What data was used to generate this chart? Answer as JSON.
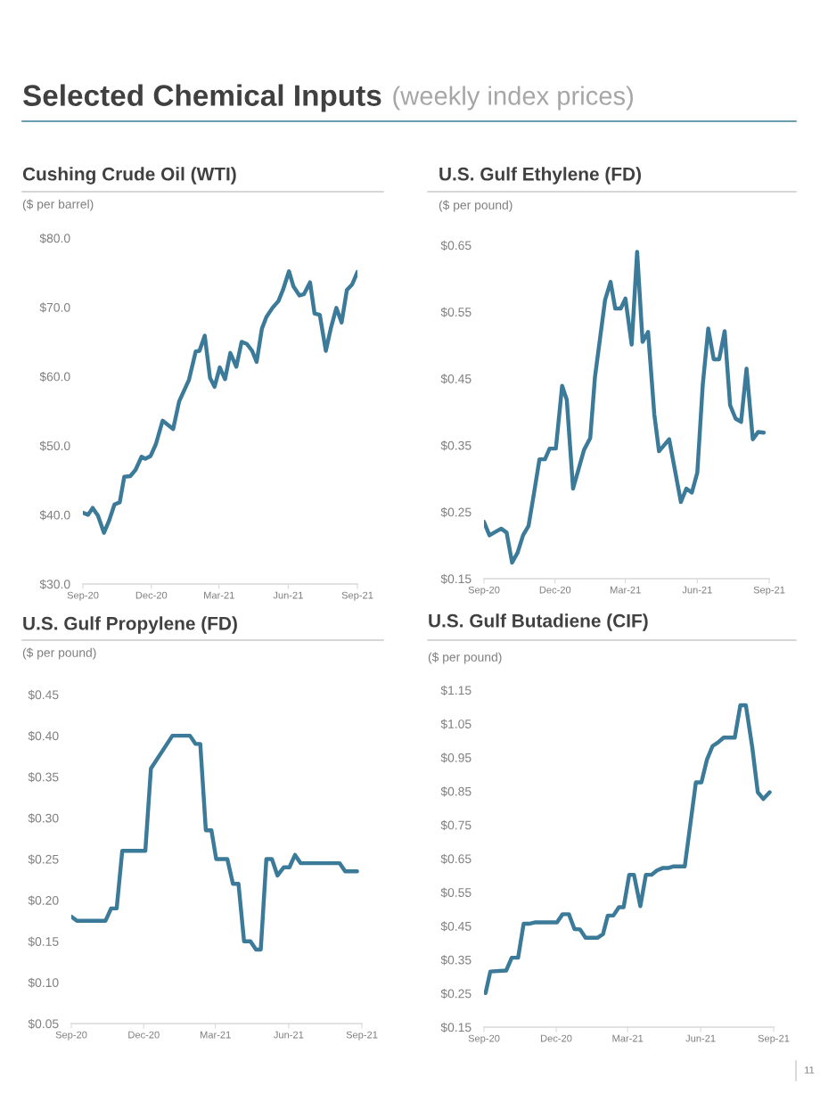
{
  "chart_data": [
    {
      "type": "line",
      "title": "Cushing Crude Oil (WTI)",
      "ylabel": "($ per barrel)",
      "annotations": [
        "Selected Chemical Inputs",
        "(weekly index prices)"
      ],
      "x": [
        "2020-09-01",
        "2020-09-08",
        "2020-09-14",
        "2020-09-21",
        "2020-09-29",
        "2020-10-06",
        "2020-10-13",
        "2020-10-20",
        "2020-10-26",
        "2020-11-03",
        "2020-11-10",
        "2020-11-18",
        "2020-11-23",
        "2020-11-30",
        "2020-12-07",
        "2020-12-16",
        "2020-12-30",
        "2021-01-07",
        "2021-01-20",
        "2021-01-29",
        "2021-02-03",
        "2021-02-10",
        "2021-02-17",
        "2021-02-23",
        "2021-03-02",
        "2021-03-09",
        "2021-03-16",
        "2021-03-24",
        "2021-03-31",
        "2021-04-07",
        "2021-04-14",
        "2021-04-20",
        "2021-04-27",
        "2021-05-03",
        "2021-05-11",
        "2021-05-19",
        "2021-05-25",
        "2021-06-02",
        "2021-06-08",
        "2021-06-16",
        "2021-06-22",
        "2021-06-30",
        "2021-07-06",
        "2021-07-13",
        "2021-07-21",
        "2021-07-28",
        "2021-08-04",
        "2021-08-11",
        "2021-08-18",
        "2021-08-25",
        "2021-09-01"
      ],
      "series": [
        {
          "color": "#3b7a98",
          "values": [
            40.3,
            40.0,
            41.0,
            39.9,
            37.4,
            39.2,
            41.5,
            41.8,
            45.5,
            45.6,
            46.5,
            48.4,
            48.1,
            48.5,
            50.2,
            53.6,
            52.4,
            56.4,
            59.5,
            63.6,
            63.7,
            65.9,
            59.8,
            58.5,
            61.3,
            59.6,
            63.4,
            61.4,
            65.0,
            64.7,
            63.7,
            62.1,
            66.9,
            68.6,
            69.9,
            70.9,
            72.5,
            75.2,
            73.0,
            71.7,
            71.9,
            73.6,
            69.1,
            68.9,
            63.7,
            67.1,
            69.9,
            67.8,
            72.5,
            73.3,
            75.1
          ]
        }
      ],
      "xlim": [
        "2020-09-01",
        "2021-09-01"
      ],
      "xticks": [
        {
          "value": "2020-09-01",
          "label": "Sep-20"
        },
        {
          "value": "2020-12-01",
          "label": "Dec-20"
        },
        {
          "value": "2021-03-01",
          "label": "Mar-21"
        },
        {
          "value": "2021-06-01",
          "label": "Jun-21"
        },
        {
          "value": "2021-09-01",
          "label": "Sep-21"
        }
      ],
      "ylim": [
        30,
        80
      ],
      "yticks": [
        {
          "value": 30,
          "label": "$30.0"
        },
        {
          "value": 40,
          "label": "$40.0"
        },
        {
          "value": 50,
          "label": "$50.0"
        },
        {
          "value": 60,
          "label": "$60.0"
        },
        {
          "value": 70,
          "label": "$70.0"
        },
        {
          "value": 80,
          "label": "$80.0"
        }
      ]
    },
    {
      "type": "line",
      "title": "U.S. Gulf Ethylene (FD)",
      "ylabel": "($ per pound)",
      "x": [
        "2020-09-01",
        "2020-09-08",
        "2020-09-23",
        "2020-09-30",
        "2020-10-07",
        "2020-10-14",
        "2020-10-21",
        "2020-10-28",
        "2020-11-04",
        "2020-11-11",
        "2020-11-18",
        "2020-11-24",
        "2020-12-02",
        "2020-12-10",
        "2020-12-16",
        "2020-12-24",
        "2020-12-31",
        "2021-01-07",
        "2021-01-15",
        "2021-01-21",
        "2021-02-03",
        "2021-02-10",
        "2021-02-16",
        "2021-02-23",
        "2021-03-01",
        "2021-03-09",
        "2021-03-16",
        "2021-03-23",
        "2021-03-30",
        "2021-04-07",
        "2021-04-13",
        "2021-04-26",
        "2021-05-11",
        "2021-05-18",
        "2021-05-25",
        "2021-06-01",
        "2021-06-08",
        "2021-06-15",
        "2021-06-22",
        "2021-06-29",
        "2021-07-06",
        "2021-07-13",
        "2021-07-20",
        "2021-07-27",
        "2021-08-03",
        "2021-08-11",
        "2021-08-18",
        "2021-08-25"
      ],
      "series": [
        {
          "color": "#3b7a98",
          "values": [
            0.235,
            0.215,
            0.225,
            0.219,
            0.174,
            0.189,
            0.215,
            0.229,
            0.278,
            0.329,
            0.329,
            0.345,
            0.345,
            0.439,
            0.418,
            0.285,
            0.314,
            0.343,
            0.361,
            0.452,
            0.568,
            0.595,
            0.555,
            0.555,
            0.57,
            0.501,
            0.64,
            0.505,
            0.52,
            0.396,
            0.341,
            0.359,
            0.265,
            0.285,
            0.279,
            0.309,
            0.441,
            0.525,
            0.479,
            0.479,
            0.521,
            0.41,
            0.39,
            0.385,
            0.465,
            0.359,
            0.37,
            0.369
          ]
        }
      ],
      "xlim": [
        "2020-09-01",
        "2021-09-01"
      ],
      "xticks": [
        {
          "value": "2020-09-01",
          "label": "Sep-20"
        },
        {
          "value": "2020-12-01",
          "label": "Dec-20"
        },
        {
          "value": "2021-03-01",
          "label": "Mar-21"
        },
        {
          "value": "2021-06-01",
          "label": "Jun-21"
        },
        {
          "value": "2021-09-01",
          "label": "Sep-21"
        }
      ],
      "ylim": [
        0.15,
        0.65
      ],
      "yticks": [
        {
          "value": 0.15,
          "label": "$0.15"
        },
        {
          "value": 0.25,
          "label": "$0.25"
        },
        {
          "value": 0.35,
          "label": "$0.35"
        },
        {
          "value": 0.45,
          "label": "$0.45"
        },
        {
          "value": 0.55,
          "label": "$0.55"
        },
        {
          "value": 0.65,
          "label": "$0.65"
        }
      ]
    },
    {
      "type": "line",
      "title": "U.S. Gulf Propylene (FD)",
      "ylabel": "($ per pound)",
      "x": [
        "2020-09-01",
        "2020-09-08",
        "2020-10-14",
        "2020-10-21",
        "2020-10-28",
        "2020-11-04",
        "2020-12-03",
        "2020-12-10",
        "2021-01-06",
        "2021-01-28",
        "2021-02-04",
        "2021-02-10",
        "2021-02-17",
        "2021-02-24",
        "2021-03-02",
        "2021-03-16",
        "2021-03-23",
        "2021-03-30",
        "2021-04-06",
        "2021-04-14",
        "2021-04-21",
        "2021-04-27",
        "2021-05-04",
        "2021-05-11",
        "2021-05-18",
        "2021-05-26",
        "2021-06-02",
        "2021-06-09",
        "2021-06-16",
        "2021-08-04",
        "2021-08-11",
        "2021-08-26"
      ],
      "series": [
        {
          "color": "#3b7a98",
          "values": [
            0.18,
            0.175,
            0.175,
            0.19,
            0.19,
            0.26,
            0.26,
            0.36,
            0.4,
            0.4,
            0.39,
            0.39,
            0.285,
            0.285,
            0.25,
            0.25,
            0.22,
            0.22,
            0.15,
            0.15,
            0.14,
            0.14,
            0.25,
            0.25,
            0.23,
            0.24,
            0.24,
            0.255,
            0.245,
            0.245,
            0.235,
            0.235
          ]
        }
      ],
      "xlim": [
        "2020-09-01",
        "2021-09-01"
      ],
      "xticks": [
        {
          "value": "2020-09-01",
          "label": "Sep-20"
        },
        {
          "value": "2020-12-01",
          "label": "Dec-20"
        },
        {
          "value": "2021-03-01",
          "label": "Mar-21"
        },
        {
          "value": "2021-06-01",
          "label": "Jun-21"
        },
        {
          "value": "2021-09-01",
          "label": "Sep-21"
        }
      ],
      "ylim": [
        0.05,
        0.45
      ],
      "yticks": [
        {
          "value": 0.05,
          "label": "$0.05"
        },
        {
          "value": 0.1,
          "label": "$0.10"
        },
        {
          "value": 0.15,
          "label": "$0.15"
        },
        {
          "value": 0.2,
          "label": "$0.20"
        },
        {
          "value": 0.25,
          "label": "$0.25"
        },
        {
          "value": 0.3,
          "label": "$0.30"
        },
        {
          "value": 0.35,
          "label": "$0.35"
        },
        {
          "value": 0.4,
          "label": "$0.40"
        },
        {
          "value": 0.45,
          "label": "$0.45"
        }
      ]
    },
    {
      "type": "line",
      "title": "U.S. Gulf Butadiene (CIF)",
      "ylabel": "($ per pound)",
      "annotations": [
        "11"
      ],
      "x": [
        "2020-09-03",
        "2020-09-09",
        "2020-09-29",
        "2020-10-06",
        "2020-10-14",
        "2020-10-21",
        "2020-10-29",
        "2020-11-05",
        "2020-12-02",
        "2020-12-09",
        "2020-12-17",
        "2020-12-24",
        "2020-12-31",
        "2021-01-07",
        "2021-01-22",
        "2021-01-29",
        "2021-02-04",
        "2021-02-11",
        "2021-02-18",
        "2021-02-24",
        "2021-03-03",
        "2021-03-09",
        "2021-03-17",
        "2021-03-24",
        "2021-03-31",
        "2021-04-07",
        "2021-04-14",
        "2021-04-21",
        "2021-04-28",
        "2021-05-12",
        "2021-05-26",
        "2021-06-02",
        "2021-06-09",
        "2021-06-16",
        "2021-06-23",
        "2021-06-30",
        "2021-07-14",
        "2021-07-21",
        "2021-07-28",
        "2021-08-05",
        "2021-08-12",
        "2021-08-19",
        "2021-08-27"
      ],
      "series": [
        {
          "color": "#3b7a98",
          "values": [
            0.251,
            0.315,
            0.318,
            0.356,
            0.356,
            0.457,
            0.457,
            0.461,
            0.461,
            0.485,
            0.485,
            0.441,
            0.44,
            0.415,
            0.415,
            0.426,
            0.481,
            0.481,
            0.506,
            0.506,
            0.602,
            0.602,
            0.509,
            0.602,
            0.602,
            0.615,
            0.622,
            0.622,
            0.627,
            0.627,
            0.876,
            0.876,
            0.944,
            0.984,
            0.995,
            1.009,
            1.009,
            1.105,
            1.105,
            0.981,
            0.847,
            0.827,
            0.847
          ]
        }
      ],
      "xlim": [
        "2020-09-01",
        "2021-09-01"
      ],
      "xticks": [
        {
          "value": "2020-09-01",
          "label": "Sep-20"
        },
        {
          "value": "2020-12-01",
          "label": "Dec-20"
        },
        {
          "value": "2021-03-01",
          "label": "Mar-21"
        },
        {
          "value": "2021-06-01",
          "label": "Jun-21"
        },
        {
          "value": "2021-09-01",
          "label": "Sep-21"
        }
      ],
      "ylim": [
        0.15,
        1.15
      ],
      "yticks": [
        {
          "value": 0.15,
          "label": "$0.15"
        },
        {
          "value": 0.25,
          "label": "$0.25"
        },
        {
          "value": 0.35,
          "label": "$0.35"
        },
        {
          "value": 0.45,
          "label": "$0.45"
        },
        {
          "value": 0.55,
          "label": "$0.55"
        },
        {
          "value": 0.65,
          "label": "$0.65"
        },
        {
          "value": 0.75,
          "label": "$0.75"
        },
        {
          "value": 0.85,
          "label": "$0.85"
        },
        {
          "value": 0.95,
          "label": "$0.95"
        },
        {
          "value": 1.05,
          "label": "$1.05"
        },
        {
          "value": 1.15,
          "label": "$1.15"
        }
      ]
    }
  ]
}
